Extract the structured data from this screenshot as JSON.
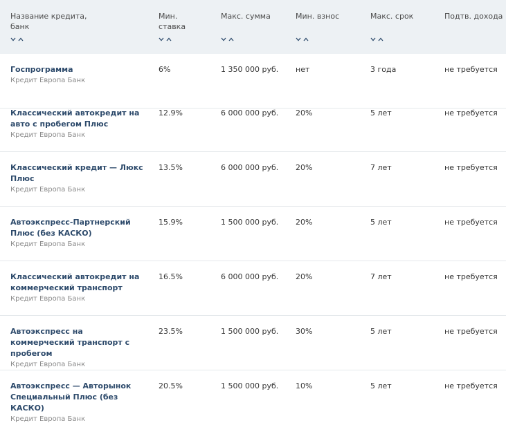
{
  "header": {
    "columns": [
      {
        "label": "Название кредита,\nбанк",
        "sortable": true
      },
      {
        "label": "Мин.\nставка",
        "sortable": true
      },
      {
        "label": "Макс. сумма",
        "sortable": true
      },
      {
        "label": "Мин. взнос",
        "sortable": true
      },
      {
        "label": "Макс. срок",
        "sortable": true
      },
      {
        "label": "Подтв. дохода",
        "sortable": false
      }
    ]
  },
  "rows": [
    {
      "name": "Госпрограмма",
      "bank": "Кредит Европа Банк",
      "rate": "6%",
      "max_sum": "1 350 000 руб.",
      "min_fee": "нет",
      "max_term": "3 года",
      "income": "не требуется"
    },
    {
      "name": "Классический автокредит на авто с пробегом Плюс",
      "bank": "Кредит Европа Банк",
      "rate": "12.9%",
      "max_sum": "6 000 000 руб.",
      "min_fee": "20%",
      "max_term": "5 лет",
      "income": "не требуется"
    },
    {
      "name": "Классический кредит — Люкс Плюс",
      "bank": "Кредит Европа Банк",
      "rate": "13.5%",
      "max_sum": "6 000 000 руб.",
      "min_fee": "20%",
      "max_term": "7 лет",
      "income": "не требуется"
    },
    {
      "name": "Автоэкспресс-Партнерский Плюс (без КАСКО)",
      "bank": "Кредит Европа Банк",
      "rate": "15.9%",
      "max_sum": "1 500 000 руб.",
      "min_fee": "20%",
      "max_term": "5 лет",
      "income": "не требуется"
    },
    {
      "name": "Классический автокредит на коммерческий транспорт",
      "bank": "Кредит Европа Банк",
      "rate": "16.5%",
      "max_sum": "6 000 000 руб.",
      "min_fee": "20%",
      "max_term": "7 лет",
      "income": "не требуется"
    },
    {
      "name": "Автоэкспресс на коммерческий транспорт с пробегом",
      "bank": "Кредит Европа Банк",
      "rate": "23.5%",
      "max_sum": "1 500 000 руб.",
      "min_fee": "30%",
      "max_term": "5 лет",
      "income": "не требуется"
    },
    {
      "name": "Автоэкспресс — Авторынок Специальный Плюс (без КАСКО)",
      "bank": "Кредит Европа Банк",
      "rate": "20.5%",
      "max_sum": "1 500 000 руб.",
      "min_fee": "10%",
      "max_term": "5 лет",
      "income": "не требуется"
    }
  ]
}
